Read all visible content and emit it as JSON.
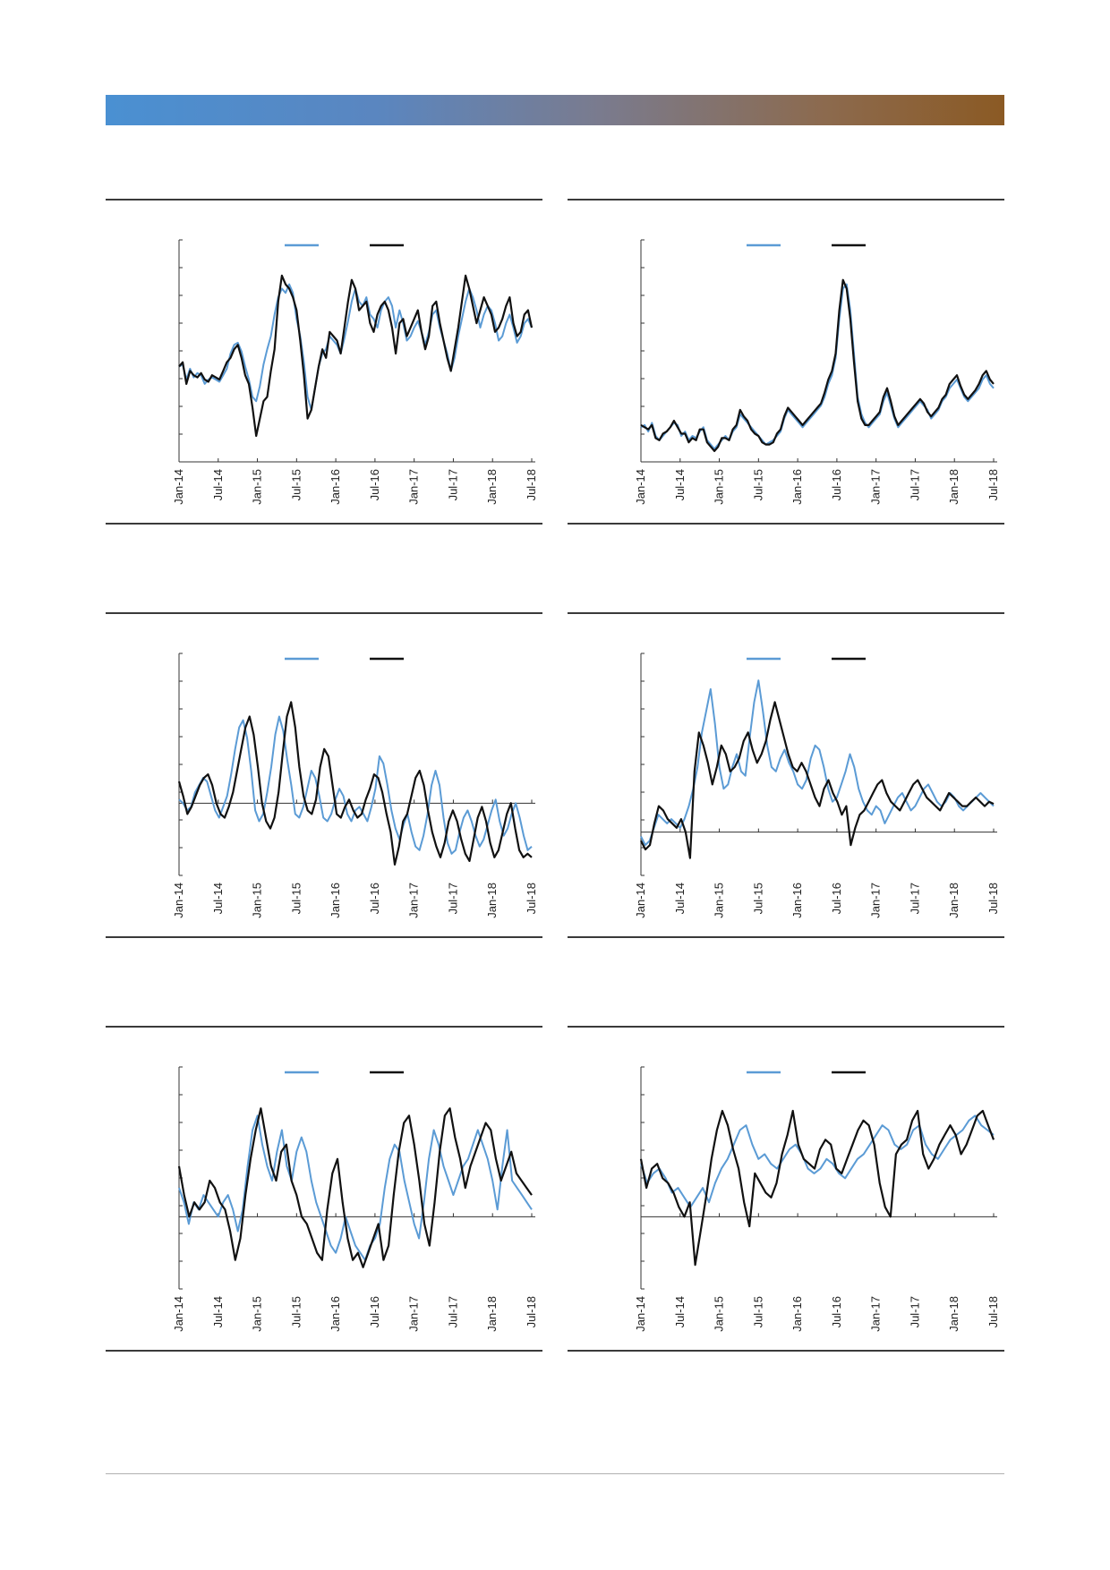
{
  "colors": {
    "series_a": "#5b9bd5",
    "series_b": "#111111",
    "axis": "#333333"
  },
  "chart_data": [
    {
      "type": "line",
      "legend_position": "top-center",
      "x_ticks": [
        "Jan-14",
        "Jul-14",
        "Jan-15",
        "Jul-15",
        "Jan-16",
        "Jul-16",
        "Jan-17",
        "Jul-17",
        "Jan-18",
        "Jul-18"
      ],
      "ylim": [
        0,
        100
      ],
      "zero_line": null,
      "series": [
        {
          "color": "#5b9bd5",
          "values": [
            44,
            45,
            38,
            43,
            39,
            41,
            40,
            36,
            38,
            39,
            38,
            37,
            40,
            43,
            50,
            54,
            55,
            51,
            44,
            38,
            30,
            28,
            35,
            45,
            52,
            58,
            68,
            76,
            80,
            78,
            82,
            78,
            66,
            58,
            46,
            30,
            24,
            34,
            44,
            50,
            52,
            58,
            56,
            54,
            50,
            57,
            65,
            74,
            80,
            74,
            72,
            76,
            68,
            66,
            62,
            70,
            74,
            76,
            72,
            62,
            70,
            64,
            56,
            58,
            62,
            65,
            60,
            54,
            60,
            68,
            70,
            62,
            56,
            50,
            42,
            48,
            58,
            66,
            74,
            80,
            76,
            70,
            62,
            68,
            72,
            70,
            64,
            56,
            58,
            64,
            68,
            62,
            55,
            58,
            64,
            66,
            62
          ]
        },
        {
          "color": "#111111",
          "values": [
            44,
            46,
            36,
            42,
            40,
            39,
            41,
            38,
            37,
            40,
            39,
            38,
            42,
            46,
            48,
            52,
            54,
            48,
            40,
            36,
            25,
            12,
            20,
            28,
            30,
            42,
            52,
            74,
            86,
            82,
            80,
            76,
            70,
            56,
            40,
            20,
            24,
            34,
            44,
            52,
            48,
            60,
            58,
            56,
            50,
            62,
            74,
            84,
            80,
            70,
            72,
            74,
            64,
            60,
            68,
            72,
            74,
            70,
            62,
            50,
            64,
            66,
            58,
            62,
            66,
            70,
            60,
            52,
            58,
            72,
            74,
            64,
            56,
            48,
            42,
            52,
            62,
            74,
            86,
            80,
            72,
            64,
            70,
            76,
            72,
            68,
            60,
            62,
            66,
            72,
            76,
            64,
            58,
            60,
            68,
            70,
            62
          ]
        }
      ]
    },
    {
      "type": "line",
      "legend_position": "top-center",
      "x_ticks": [
        "Jan-14",
        "Jul-14",
        "Jan-15",
        "Jul-15",
        "Jan-16",
        "Jul-16",
        "Jan-17",
        "Jul-17",
        "Jan-18",
        "Jul-18"
      ],
      "ylim": [
        0,
        100
      ],
      "zero_line": null,
      "series": [
        {
          "color": "#5b9bd5",
          "values": [
            16,
            17,
            14,
            18,
            12,
            10,
            12,
            14,
            16,
            18,
            17,
            12,
            14,
            10,
            12,
            11,
            14,
            16,
            10,
            8,
            6,
            8,
            10,
            12,
            10,
            14,
            16,
            22,
            20,
            18,
            16,
            14,
            12,
            10,
            8,
            9,
            10,
            12,
            14,
            20,
            24,
            22,
            20,
            18,
            16,
            18,
            20,
            22,
            24,
            26,
            30,
            36,
            40,
            48,
            66,
            80,
            82,
            70,
            50,
            30,
            22,
            18,
            16,
            18,
            20,
            22,
            28,
            32,
            26,
            20,
            16,
            18,
            20,
            22,
            24,
            26,
            28,
            26,
            24,
            20,
            22,
            24,
            28,
            30,
            34,
            36,
            38,
            34,
            30,
            28,
            30,
            32,
            34,
            38,
            40,
            36,
            34
          ]
        },
        {
          "color": "#111111",
          "values": [
            17,
            16,
            15,
            17,
            11,
            10,
            13,
            14,
            16,
            19,
            16,
            13,
            13,
            9,
            11,
            10,
            15,
            15,
            9,
            7,
            5,
            7,
            11,
            11,
            10,
            15,
            17,
            24,
            21,
            19,
            15,
            13,
            12,
            9,
            8,
            8,
            9,
            13,
            15,
            21,
            25,
            23,
            21,
            19,
            17,
            19,
            21,
            23,
            25,
            27,
            32,
            38,
            42,
            50,
            70,
            84,
            80,
            66,
            46,
            28,
            20,
            17,
            17,
            19,
            21,
            23,
            30,
            34,
            28,
            21,
            17,
            19,
            21,
            23,
            25,
            27,
            29,
            27,
            23,
            21,
            23,
            25,
            29,
            31,
            36,
            38,
            40,
            35,
            31,
            29,
            31,
            33,
            36,
            40,
            42,
            38,
            36
          ]
        }
      ]
    },
    {
      "type": "line",
      "legend_position": "top-center",
      "x_ticks": [
        "Jan-14",
        "Jul-14",
        "Jan-15",
        "Jul-15",
        "Jan-16",
        "Jul-16",
        "Jan-17",
        "Jul-17",
        "Jan-18",
        "Jul-18"
      ],
      "ylim": [
        -40,
        80
      ],
      "zero_line": 0,
      "series": [
        {
          "color": "#5b9bd5",
          "values": [
            2,
            0,
            -4,
            -2,
            6,
            10,
            14,
            12,
            4,
            -4,
            -8,
            -2,
            4,
            16,
            30,
            42,
            46,
            36,
            18,
            -4,
            -10,
            -6,
            6,
            20,
            38,
            48,
            40,
            24,
            10,
            -6,
            -8,
            -2,
            8,
            18,
            14,
            4,
            -8,
            -10,
            -6,
            2,
            8,
            4,
            -6,
            -10,
            -4,
            -2,
            -6,
            -10,
            -2,
            8,
            26,
            22,
            10,
            -4,
            -14,
            -20,
            -12,
            -6,
            -16,
            -24,
            -26,
            -18,
            -6,
            10,
            18,
            10,
            -8,
            -22,
            -28,
            -26,
            -16,
            -8,
            -4,
            -10,
            -18,
            -24,
            -20,
            -12,
            -4,
            2,
            -10,
            -18,
            -14,
            -6,
            0,
            -8,
            -18,
            -26,
            -24
          ]
        },
        {
          "color": "#111111",
          "values": [
            12,
            4,
            -6,
            -2,
            4,
            10,
            14,
            16,
            10,
            0,
            -6,
            -8,
            -2,
            6,
            18,
            30,
            42,
            48,
            38,
            20,
            0,
            -10,
            -14,
            -8,
            6,
            28,
            48,
            56,
            42,
            20,
            4,
            -4,
            -6,
            2,
            20,
            30,
            26,
            10,
            -6,
            -8,
            -2,
            2,
            -4,
            -8,
            -6,
            2,
            8,
            16,
            14,
            6,
            -6,
            -16,
            -34,
            -24,
            -10,
            -6,
            4,
            14,
            18,
            10,
            -4,
            -16,
            -24,
            -30,
            -22,
            -10,
            -4,
            -10,
            -20,
            -28,
            -32,
            -20,
            -8,
            -2,
            -10,
            -22,
            -30,
            -26,
            -16,
            -6,
            0,
            -14,
            -26,
            -30,
            -28,
            -30
          ]
        }
      ]
    },
    {
      "type": "line",
      "legend_position": "top-center",
      "x_ticks": [
        "Jan-14",
        "Jul-14",
        "Jan-15",
        "Jul-15",
        "Jan-16",
        "Jul-16",
        "Jan-17",
        "Jul-17",
        "Jan-18",
        "Jul-18"
      ],
      "ylim": [
        -20,
        80
      ],
      "zero_line": 0,
      "series": [
        {
          "color": "#5b9bd5",
          "values": [
            -2,
            -6,
            -4,
            2,
            8,
            6,
            4,
            6,
            4,
            2,
            6,
            12,
            20,
            30,
            46,
            56,
            66,
            50,
            30,
            20,
            22,
            30,
            36,
            28,
            26,
            44,
            60,
            70,
            56,
            40,
            30,
            28,
            34,
            38,
            32,
            28,
            22,
            20,
            24,
            34,
            40,
            38,
            30,
            20,
            14,
            16,
            22,
            28,
            36,
            30,
            20,
            14,
            10,
            8,
            12,
            10,
            4,
            8,
            12,
            16,
            18,
            14,
            10,
            12,
            16,
            20,
            22,
            18,
            14,
            12,
            14,
            18,
            16,
            12,
            10,
            12,
            14,
            16,
            18,
            16,
            14,
            12
          ]
        },
        {
          "color": "#111111",
          "values": [
            -4,
            -8,
            -6,
            4,
            12,
            10,
            6,
            4,
            2,
            6,
            0,
            -12,
            28,
            46,
            40,
            32,
            22,
            30,
            40,
            36,
            28,
            30,
            34,
            42,
            46,
            38,
            32,
            36,
            42,
            52,
            60,
            52,
            44,
            36,
            30,
            28,
            32,
            28,
            22,
            16,
            12,
            20,
            24,
            18,
            14,
            8,
            12,
            -6,
            2,
            8,
            10,
            14,
            18,
            22,
            24,
            18,
            14,
            12,
            10,
            14,
            18,
            22,
            24,
            20,
            16,
            14,
            12,
            10,
            14,
            18,
            16,
            14,
            12,
            12,
            14,
            16,
            14,
            12,
            14,
            13
          ]
        }
      ]
    },
    {
      "type": "line",
      "legend_position": "top-center",
      "x_ticks": [
        "Jan-14",
        "Jul-14",
        "Jan-15",
        "Jul-15",
        "Jan-16",
        "Jul-16",
        "Jan-17",
        "Jul-17",
        "Jan-18",
        "Jul-18"
      ],
      "ylim": [
        -20,
        40
      ],
      "zero_line": 0,
      "series": [
        {
          "color": "#5b9bd5",
          "values": [
            8,
            4,
            -2,
            4,
            2,
            6,
            4,
            2,
            0,
            4,
            6,
            2,
            -4,
            2,
            14,
            24,
            28,
            20,
            14,
            10,
            18,
            24,
            14,
            10,
            18,
            22,
            18,
            10,
            4,
            0,
            -4,
            -8,
            -10,
            -6,
            0,
            -4,
            -8,
            -10,
            -12,
            -8,
            -6,
            -2,
            8,
            16,
            20,
            18,
            10,
            4,
            -2,
            -6,
            4,
            16,
            24,
            20,
            14,
            10,
            6,
            10,
            14,
            16,
            20,
            24,
            20,
            16,
            10,
            2,
            14,
            24,
            10,
            8,
            6,
            4,
            2
          ]
        },
        {
          "color": "#111111",
          "values": [
            14,
            6,
            0,
            4,
            2,
            4,
            10,
            8,
            4,
            2,
            -4,
            -12,
            -6,
            6,
            16,
            24,
            30,
            22,
            14,
            10,
            18,
            20,
            10,
            6,
            0,
            -2,
            -6,
            -10,
            -12,
            2,
            12,
            16,
            4,
            -6,
            -12,
            -10,
            -14,
            -10,
            -6,
            -2,
            -12,
            -8,
            6,
            18,
            26,
            28,
            20,
            10,
            -2,
            -8,
            4,
            18,
            28,
            30,
            22,
            16,
            8,
            14,
            18,
            22,
            26,
            24,
            16,
            10,
            14,
            18,
            12,
            10,
            8,
            6
          ]
        }
      ]
    },
    {
      "type": "line",
      "legend_position": "top-center",
      "x_ticks": [
        "Jan-14",
        "Jul-14",
        "Jan-15",
        "Jul-15",
        "Jan-16",
        "Jul-16",
        "Jan-17",
        "Jul-17",
        "Jan-18",
        "Jul-18"
      ],
      "ylim": [
        -30,
        60
      ],
      "zero_line": 0,
      "series": [
        {
          "color": "#5b9bd5",
          "values": [
            22,
            14,
            18,
            20,
            16,
            10,
            12,
            8,
            4,
            8,
            12,
            6,
            14,
            20,
            24,
            30,
            36,
            38,
            30,
            24,
            26,
            22,
            20,
            24,
            28,
            30,
            26,
            20,
            18,
            20,
            24,
            22,
            18,
            16,
            20,
            24,
            26,
            30,
            34,
            38,
            36,
            30,
            28,
            30,
            36,
            38,
            30,
            26,
            24,
            28,
            32,
            34,
            36,
            40,
            42,
            38,
            36,
            34
          ]
        },
        {
          "color": "#111111",
          "values": [
            24,
            12,
            20,
            22,
            16,
            14,
            10,
            4,
            0,
            6,
            -20,
            -6,
            8,
            24,
            36,
            44,
            38,
            28,
            20,
            6,
            -4,
            18,
            14,
            10,
            8,
            14,
            26,
            34,
            44,
            30,
            24,
            22,
            20,
            28,
            32,
            30,
            20,
            18,
            24,
            30,
            36,
            40,
            38,
            30,
            14,
            4,
            0,
            26,
            30,
            32,
            40,
            44,
            26,
            20,
            24,
            30,
            34,
            38,
            34,
            26,
            30,
            36,
            42,
            44,
            38,
            32
          ]
        }
      ]
    }
  ]
}
